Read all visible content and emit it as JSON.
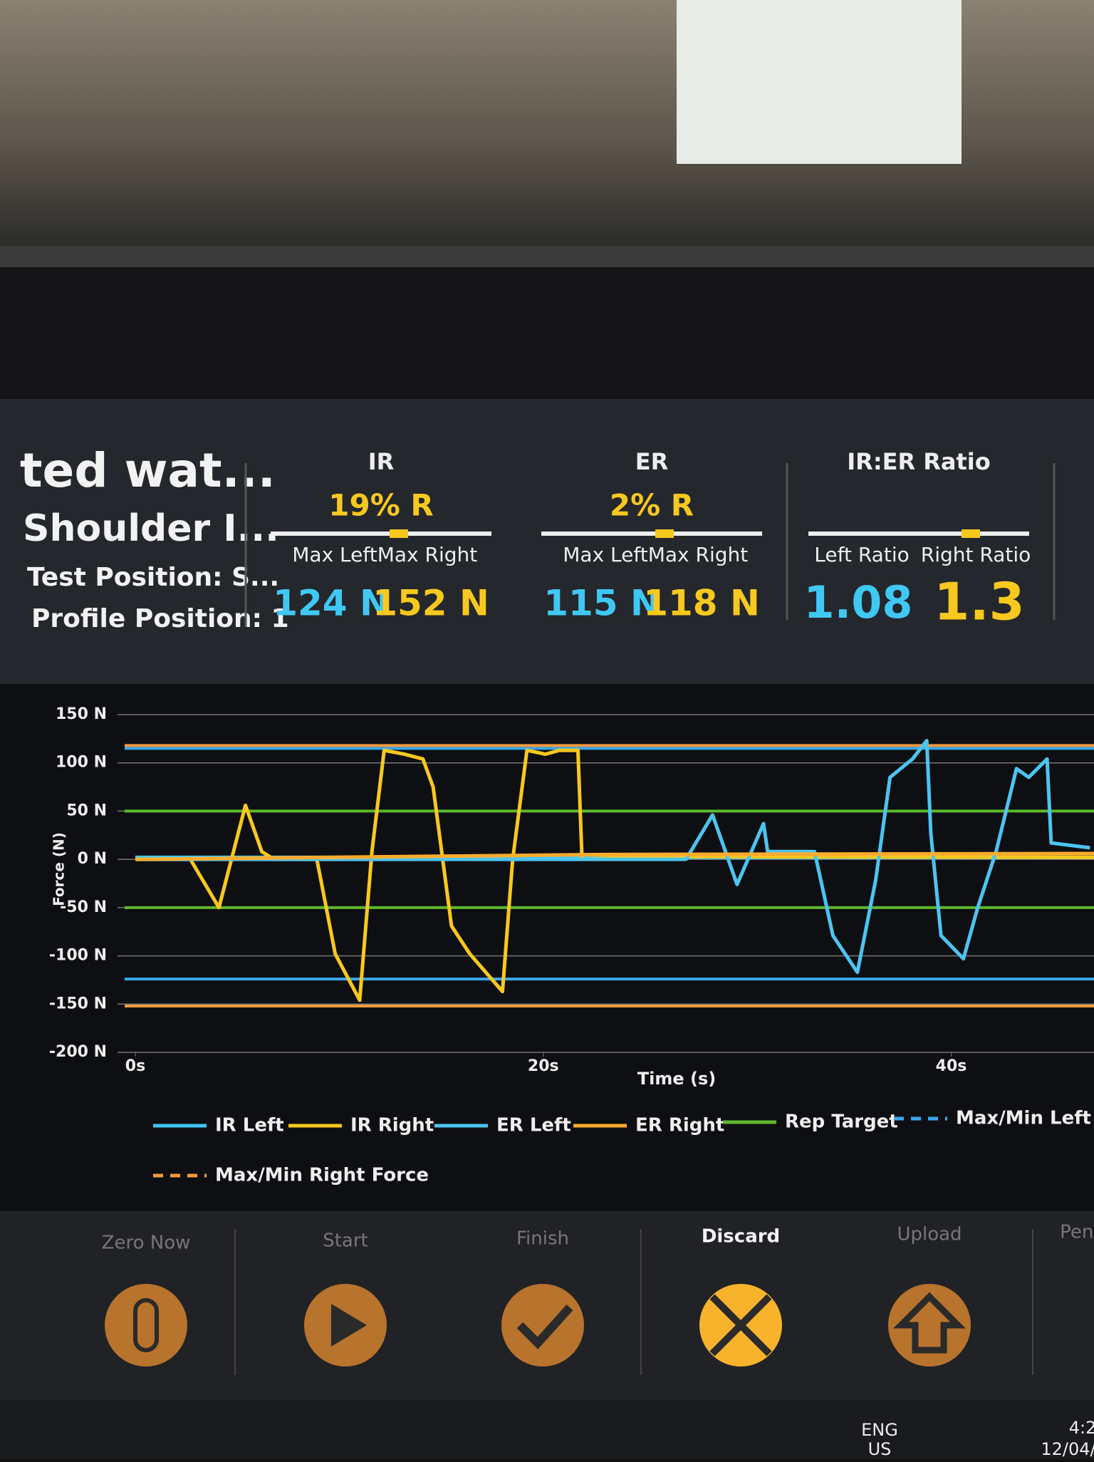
{
  "header": {
    "name": "ted wat...",
    "test": "Shoulder I...",
    "test_position": "Test Position: S...",
    "profile_position": "Profile Position: 1"
  },
  "metrics": [
    {
      "title": "IR",
      "diff": "19% R",
      "labels": [
        "Max Left",
        "Max Right"
      ],
      "values": [
        "124 N",
        "152 N"
      ]
    },
    {
      "title": "ER",
      "diff": "2% R",
      "labels": [
        "Max Left",
        "Max Right"
      ],
      "values": [
        "115 N",
        "118 N"
      ]
    },
    {
      "title": "IR:ER Ratio",
      "labels": [
        "Left Ratio",
        "Right Ratio"
      ],
      "values": [
        "1.08",
        "1.3"
      ]
    }
  ],
  "chart_data": {
    "type": "line",
    "x_label": "Time (s)",
    "y_label": "Force (N)",
    "xlim": [
      0,
      47
    ],
    "xticks": [
      {
        "value": 0,
        "label": "0s"
      },
      {
        "value": 20,
        "label": "20s"
      },
      {
        "value": 40,
        "label": "40s"
      }
    ],
    "ylim": [
      -200,
      150
    ],
    "yticks": [
      {
        "value": -200,
        "label": "-200 N"
      },
      {
        "value": -150,
        "label": "-150 N"
      },
      {
        "value": -100,
        "label": "-100 N"
      },
      {
        "value": -50,
        "label": "-50 N"
      },
      {
        "value": 0,
        "label": "0 N"
      },
      {
        "value": 50,
        "label": "50 N"
      },
      {
        "value": 100,
        "label": "100 N"
      },
      {
        "value": 150,
        "label": "150 N"
      }
    ],
    "grid": true,
    "series": [
      {
        "name": "IR Left",
        "color": "#40c8f4",
        "x": [
          0,
          10,
          20,
          30,
          40,
          47
        ],
        "values": [
          2,
          2,
          2,
          2,
          2,
          2
        ]
      },
      {
        "name": "IR Right",
        "color": "#f7c81e",
        "x": [
          0,
          2.7,
          4.1,
          5.4,
          6.2,
          6.8,
          8.9,
          9.8,
          11,
          11.6,
          12.2,
          13.2,
          14.1,
          14.6,
          15.5,
          16.4,
          18,
          18.5,
          19.2,
          20.1,
          20.8,
          21.7,
          21.9,
          25,
          47
        ],
        "values": [
          0,
          0,
          -50,
          56,
          8,
          0,
          0,
          -98,
          -146,
          8,
          113,
          109,
          104,
          75,
          -69,
          -98,
          -137,
          0,
          113,
          109,
          113,
          113,
          0,
          3,
          2
        ]
      },
      {
        "name": "ER Left",
        "color": "#4cc4f0",
        "x": [
          0,
          27,
          28.3,
          29.5,
          30.8,
          31,
          33.3,
          34.2,
          35.4,
          36.3,
          37,
          38.1,
          38.8,
          39,
          39.5,
          40.6,
          41.3,
          42.2,
          43.2,
          43.8,
          44.7,
          44.9,
          46.8
        ],
        "values": [
          0,
          0,
          46,
          -26,
          37,
          8,
          8,
          -79,
          -117,
          -21,
          85,
          104,
          123,
          27,
          -79,
          -103,
          -50,
          8,
          94,
          85,
          104,
          17,
          12
        ]
      },
      {
        "name": "ER Right",
        "color": "#ffab2e",
        "x": [
          0,
          23,
          47
        ],
        "values": [
          0,
          5,
          6
        ]
      }
    ],
    "reference_lines": [
      {
        "name": "Rep Target",
        "color": "#5cb82c",
        "dash": false,
        "values": [
          50,
          -50
        ]
      },
      {
        "name": "Max/Min Left Fo",
        "color": "#3aa8f0",
        "dash": true,
        "values": [
          115,
          -124
        ]
      },
      {
        "name": "Max/Min Right Force",
        "color": "#f39a3c",
        "dash": true,
        "values": [
          118,
          -152
        ]
      }
    ]
  },
  "buttons": [
    "Zero Now",
    "Start",
    "Finish",
    "Discard",
    "Upload",
    "Pend"
  ],
  "taskbar": {
    "lang": "ENG",
    "region": "US",
    "time": "4:2",
    "date": "12/04/"
  }
}
